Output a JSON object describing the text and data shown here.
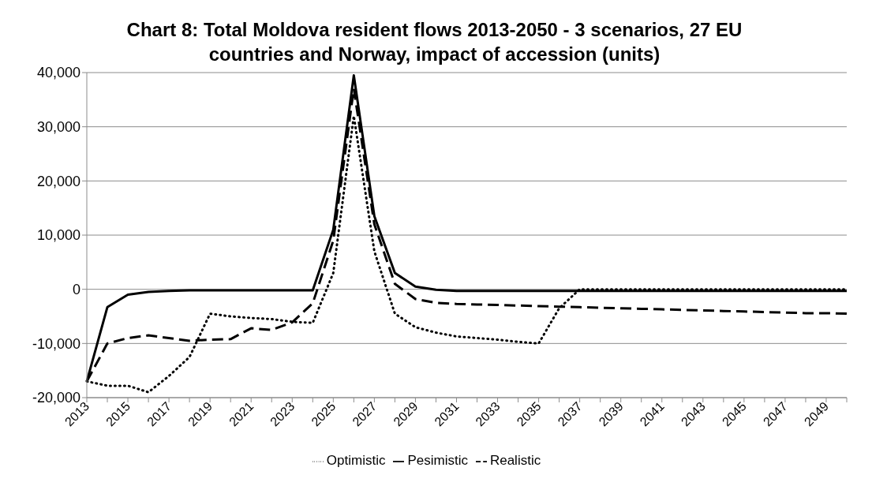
{
  "chart_data": {
    "type": "line",
    "title": "Chart 8: Total Moldova resident flows 2013-2050 - 3 scenarios, 27 EU countries and Norway, impact of accession (units)",
    "categories": [
      "2013",
      null,
      "2015",
      null,
      "2017",
      null,
      "2019",
      null,
      "2021",
      null,
      "2023",
      null,
      "2025",
      null,
      "2027",
      null,
      "2029",
      null,
      "2031",
      null,
      "2033",
      null,
      "2035",
      null,
      "2037",
      null,
      "2039",
      null,
      "2041",
      null,
      "2043",
      null,
      "2045",
      null,
      "2047",
      null,
      "2049",
      null
    ],
    "series": [
      {
        "name": "Optimistic",
        "color": "#000000",
        "line_style": "dotted",
        "values": [
          -17000,
          -17800,
          -17800,
          -19000,
          -16000,
          -12500,
          -4500,
          -5000,
          -5300,
          -5500,
          -6000,
          -6200,
          3000,
          32000,
          7000,
          -4500,
          -7000,
          -8000,
          -8700,
          -9000,
          -9300,
          -9700,
          -10000,
          -3500,
          0,
          0,
          0,
          0,
          0,
          0,
          0,
          0,
          0,
          0,
          0,
          0,
          0,
          0
        ]
      },
      {
        "name": "Realistic",
        "color": "#000000",
        "line_style": "dashed",
        "values": [
          -17000,
          -10000,
          -9000,
          -8500,
          -9000,
          -9500,
          -9300,
          -9200,
          -7200,
          -7500,
          -6100,
          -2600,
          9000,
          37000,
          12000,
          1000,
          -1800,
          -2500,
          -2700,
          -2800,
          -2900,
          -3000,
          -3100,
          -3200,
          -3300,
          -3400,
          -3500,
          -3600,
          -3700,
          -3800,
          -3900,
          -4000,
          -4100,
          -4200,
          -4300,
          -4400,
          -4400,
          -4500
        ]
      },
      {
        "name": "Pesimistic",
        "color": "#000000",
        "line_style": "solid",
        "values": [
          -17000,
          -3300,
          -1000,
          -500,
          -300,
          -200,
          -200,
          -200,
          -200,
          -200,
          -200,
          -200,
          11000,
          39500,
          13500,
          3000,
          500,
          -100,
          -300,
          -300,
          -300,
          -300,
          -300,
          -300,
          -300,
          -300,
          -300,
          -300,
          -300,
          -300,
          -300,
          -300,
          -300,
          -300,
          -300,
          -300,
          -300,
          -300
        ]
      }
    ],
    "ylim": [
      -20000,
      40000
    ],
    "yticks": [
      {
        "value": -20000,
        "label": "-20,000"
      },
      {
        "value": -10000,
        "label": "-10,000"
      },
      {
        "value": 0,
        "label": "0"
      },
      {
        "value": 10000,
        "label": "10,000"
      },
      {
        "value": 20000,
        "label": "20,000"
      },
      {
        "value": 30000,
        "label": "30,000"
      },
      {
        "value": 40000,
        "label": "40,000"
      }
    ],
    "grid": "y",
    "legend": "bottom",
    "marker": "none"
  }
}
